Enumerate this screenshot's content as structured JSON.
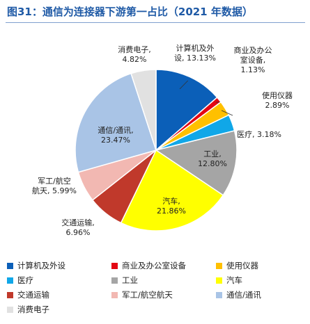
{
  "title": "图31：通信为连接器下游第一占比（2021 年数据）",
  "chart_data": {
    "type": "pie",
    "title": "图31：通信为连接器下游第一占比（2021 年数据）",
    "unit": "%",
    "slices": [
      {
        "name": "计算机及外设",
        "value": 13.13,
        "label_lines": [
          "计算机及外",
          "设, 13.13%"
        ],
        "color": "#0b5fb8"
      },
      {
        "name": "商业及办公室设备",
        "value": 1.13,
        "label_lines": [
          "商业及办公",
          "室设备,",
          "1.13%"
        ],
        "color": "#e30613"
      },
      {
        "name": "使用仪器",
        "value": 2.89,
        "label_lines": [
          "使用仪器",
          "2.89%"
        ],
        "color": "#ffc000"
      },
      {
        "name": "医疗",
        "value": 3.18,
        "label_lines": [
          "医疗, 3.18%"
        ],
        "color": "#10a7e8"
      },
      {
        "name": "工业",
        "value": 12.8,
        "label_lines": [
          "工业,",
          "12.80%"
        ],
        "color": "#a5a5a5"
      },
      {
        "name": "汽车",
        "value": 21.86,
        "label_lines": [
          "汽车,",
          "21.86%"
        ],
        "color": "#ffff00"
      },
      {
        "name": "交通运输",
        "value": 6.96,
        "label_lines": [
          "交通运输,",
          "6.96%"
        ],
        "color": "#c0392b"
      },
      {
        "name": "军工/航空航天",
        "value": 5.99,
        "label_lines": [
          "军工/航空",
          "航天, 5.99%"
        ],
        "color": "#f2b8b2"
      },
      {
        "name": "通信/通讯",
        "value": 23.47,
        "label_lines": [
          "通信/通讯,",
          "23.47%"
        ],
        "color": "#a9c4e6"
      },
      {
        "name": "消费电子",
        "value": 4.82,
        "label_lines": [
          "消费电子,",
          "4.82%"
        ],
        "color": "#e1e1e1"
      }
    ],
    "legend": "bottom"
  }
}
